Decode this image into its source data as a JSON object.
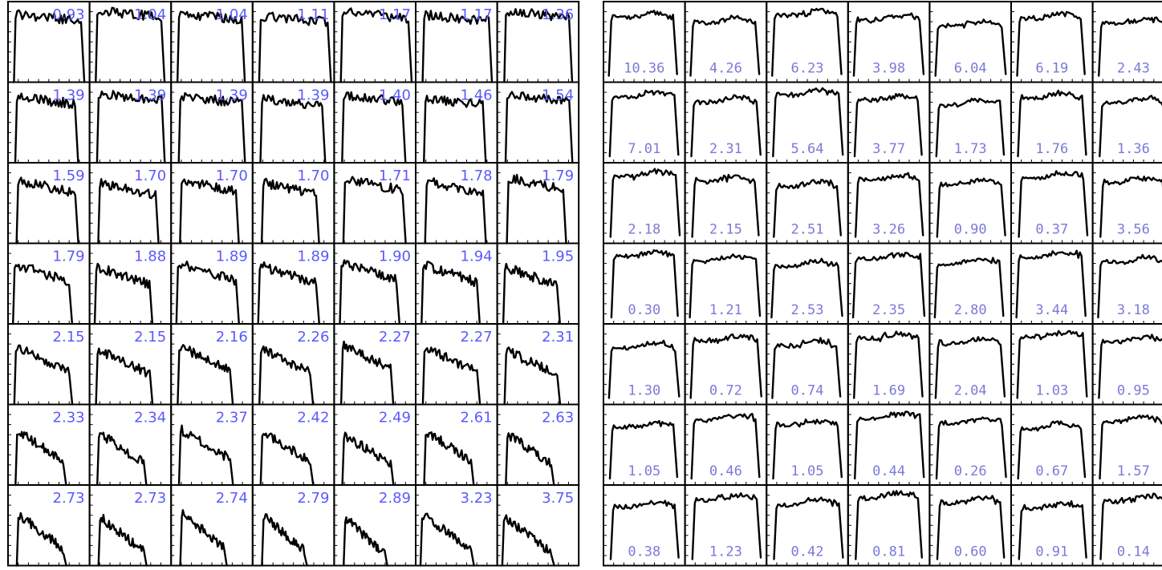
{
  "chart_data": [
    {
      "type": "line",
      "title": "",
      "grid": false,
      "values": [
        "0.93",
        "1.04",
        "1.04",
        "1.11",
        "1.17",
        "1.17",
        "1.36",
        "1.39",
        "1.39",
        "1.39",
        "1.39",
        "1.40",
        "1.46",
        "1.54",
        "1.59",
        "1.70",
        "1.70",
        "1.70",
        "1.71",
        "1.78",
        "1.79",
        "1.79",
        "1.88",
        "1.89",
        "1.89",
        "1.90",
        "1.94",
        "1.95",
        "2.15",
        "2.15",
        "2.16",
        "2.26",
        "2.27",
        "2.27",
        "2.31",
        "2.33",
        "2.34",
        "2.37",
        "2.42",
        "2.49",
        "2.61",
        "2.63",
        "2.73",
        "2.73",
        "2.74",
        "2.79",
        "2.89",
        "3.23",
        "3.75"
      ]
    },
    {
      "type": "line",
      "title": "",
      "grid": false,
      "values": [
        "10.36",
        "4.26",
        "6.23",
        "3.98",
        "6.04",
        "6.19",
        "2.43",
        "7.01",
        "2.31",
        "5.64",
        "3.77",
        "1.73",
        "1.76",
        "1.36",
        "2.18",
        "2.15",
        "2.51",
        "3.26",
        "0.90",
        "0.37",
        "3.56",
        "0.30",
        "1.21",
        "2.53",
        "2.35",
        "2.80",
        "3.44",
        "3.18",
        "1.30",
        "0.72",
        "0.74",
        "1.69",
        "2.04",
        "1.03",
        "0.95",
        "1.05",
        "0.46",
        "1.05",
        "0.44",
        "0.26",
        "0.67",
        "1.57",
        "0.38",
        "1.23",
        "0.42",
        "0.81",
        "0.60",
        "0.91",
        "0.14"
      ]
    }
  ]
}
